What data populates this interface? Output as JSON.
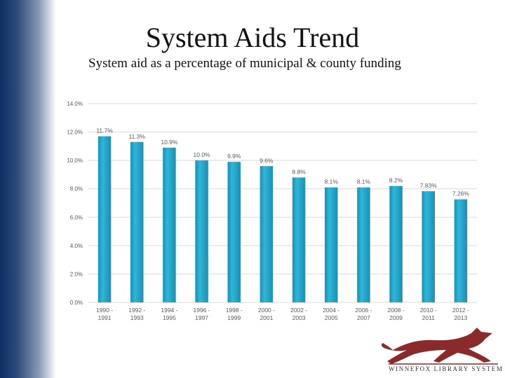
{
  "slide": {
    "title": "System Aids Trend",
    "subtitle": "System aid as a percentage of municipal & county funding"
  },
  "logo": {
    "text": "WINNEFOX LIBRARY SYSTEM",
    "icon": "running-fox-icon",
    "color": "#8b2a2a"
  },
  "colors": {
    "bar": "#2fb6da",
    "bar_dark": "#1a8fb3",
    "grid": "#d9d9d9",
    "axis_text": "#595959"
  },
  "chart_data": {
    "type": "bar",
    "categories": [
      "1990 - 1991",
      "1992 - 1993",
      "1994 - 1995",
      "1996 - 1997",
      "1998 - 1999",
      "2000 - 2001",
      "2002 - 2003",
      "2004 - 2005",
      "2006 - 2007",
      "2008 - 2009",
      "2010 - 2011",
      "2012 - 2013"
    ],
    "values": [
      11.7,
      11.3,
      10.9,
      10.0,
      9.9,
      9.6,
      8.8,
      8.1,
      8.1,
      8.2,
      7.83,
      7.26
    ],
    "data_labels": [
      "11.7%",
      "11.3%",
      "10.9%",
      "10.0%",
      "9.9%",
      "9.6%",
      "8.8%",
      "8.1%",
      "8.1%",
      "8.2%",
      "7.83%",
      "7.26%"
    ],
    "yticks": [
      "0.0%",
      "2.0%",
      "4.0%",
      "6.0%",
      "8.0%",
      "10.0%",
      "12.0%",
      "14.0%"
    ],
    "ylim": [
      0,
      14
    ],
    "grid": true,
    "legend": "none",
    "xlabel": "",
    "ylabel": ""
  }
}
